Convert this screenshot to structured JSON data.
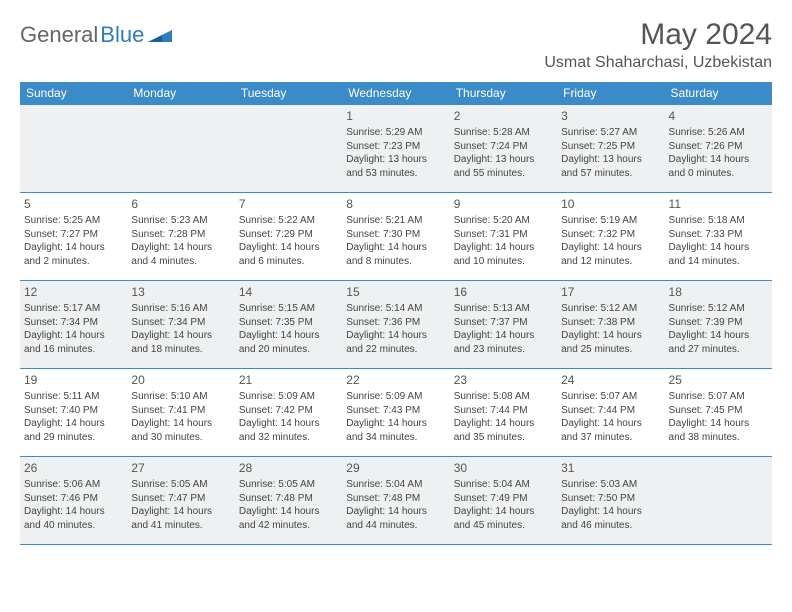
{
  "brand": {
    "part1": "General",
    "part2": "Blue"
  },
  "title": "May 2024",
  "location": "Usmat Shaharchasi, Uzbekistan",
  "colors": {
    "header_bg": "#3b8bc8",
    "header_text": "#ffffff",
    "alt_row_bg": "#eef0f1",
    "border": "#3b8bc8",
    "text": "#444444",
    "title_text": "#555555",
    "logo_gray": "#666666",
    "logo_blue": "#2e7cc0"
  },
  "dow": [
    "Sunday",
    "Monday",
    "Tuesday",
    "Wednesday",
    "Thursday",
    "Friday",
    "Saturday"
  ],
  "weeks": [
    [
      {
        "n": "",
        "sr": "",
        "ss": "",
        "dl": ""
      },
      {
        "n": "",
        "sr": "",
        "ss": "",
        "dl": ""
      },
      {
        "n": "",
        "sr": "",
        "ss": "",
        "dl": ""
      },
      {
        "n": "1",
        "sr": "Sunrise: 5:29 AM",
        "ss": "Sunset: 7:23 PM",
        "dl": "Daylight: 13 hours and 53 minutes."
      },
      {
        "n": "2",
        "sr": "Sunrise: 5:28 AM",
        "ss": "Sunset: 7:24 PM",
        "dl": "Daylight: 13 hours and 55 minutes."
      },
      {
        "n": "3",
        "sr": "Sunrise: 5:27 AM",
        "ss": "Sunset: 7:25 PM",
        "dl": "Daylight: 13 hours and 57 minutes."
      },
      {
        "n": "4",
        "sr": "Sunrise: 5:26 AM",
        "ss": "Sunset: 7:26 PM",
        "dl": "Daylight: 14 hours and 0 minutes."
      }
    ],
    [
      {
        "n": "5",
        "sr": "Sunrise: 5:25 AM",
        "ss": "Sunset: 7:27 PM",
        "dl": "Daylight: 14 hours and 2 minutes."
      },
      {
        "n": "6",
        "sr": "Sunrise: 5:23 AM",
        "ss": "Sunset: 7:28 PM",
        "dl": "Daylight: 14 hours and 4 minutes."
      },
      {
        "n": "7",
        "sr": "Sunrise: 5:22 AM",
        "ss": "Sunset: 7:29 PM",
        "dl": "Daylight: 14 hours and 6 minutes."
      },
      {
        "n": "8",
        "sr": "Sunrise: 5:21 AM",
        "ss": "Sunset: 7:30 PM",
        "dl": "Daylight: 14 hours and 8 minutes."
      },
      {
        "n": "9",
        "sr": "Sunrise: 5:20 AM",
        "ss": "Sunset: 7:31 PM",
        "dl": "Daylight: 14 hours and 10 minutes."
      },
      {
        "n": "10",
        "sr": "Sunrise: 5:19 AM",
        "ss": "Sunset: 7:32 PM",
        "dl": "Daylight: 14 hours and 12 minutes."
      },
      {
        "n": "11",
        "sr": "Sunrise: 5:18 AM",
        "ss": "Sunset: 7:33 PM",
        "dl": "Daylight: 14 hours and 14 minutes."
      }
    ],
    [
      {
        "n": "12",
        "sr": "Sunrise: 5:17 AM",
        "ss": "Sunset: 7:34 PM",
        "dl": "Daylight: 14 hours and 16 minutes."
      },
      {
        "n": "13",
        "sr": "Sunrise: 5:16 AM",
        "ss": "Sunset: 7:34 PM",
        "dl": "Daylight: 14 hours and 18 minutes."
      },
      {
        "n": "14",
        "sr": "Sunrise: 5:15 AM",
        "ss": "Sunset: 7:35 PM",
        "dl": "Daylight: 14 hours and 20 minutes."
      },
      {
        "n": "15",
        "sr": "Sunrise: 5:14 AM",
        "ss": "Sunset: 7:36 PM",
        "dl": "Daylight: 14 hours and 22 minutes."
      },
      {
        "n": "16",
        "sr": "Sunrise: 5:13 AM",
        "ss": "Sunset: 7:37 PM",
        "dl": "Daylight: 14 hours and 23 minutes."
      },
      {
        "n": "17",
        "sr": "Sunrise: 5:12 AM",
        "ss": "Sunset: 7:38 PM",
        "dl": "Daylight: 14 hours and 25 minutes."
      },
      {
        "n": "18",
        "sr": "Sunrise: 5:12 AM",
        "ss": "Sunset: 7:39 PM",
        "dl": "Daylight: 14 hours and 27 minutes."
      }
    ],
    [
      {
        "n": "19",
        "sr": "Sunrise: 5:11 AM",
        "ss": "Sunset: 7:40 PM",
        "dl": "Daylight: 14 hours and 29 minutes."
      },
      {
        "n": "20",
        "sr": "Sunrise: 5:10 AM",
        "ss": "Sunset: 7:41 PM",
        "dl": "Daylight: 14 hours and 30 minutes."
      },
      {
        "n": "21",
        "sr": "Sunrise: 5:09 AM",
        "ss": "Sunset: 7:42 PM",
        "dl": "Daylight: 14 hours and 32 minutes."
      },
      {
        "n": "22",
        "sr": "Sunrise: 5:09 AM",
        "ss": "Sunset: 7:43 PM",
        "dl": "Daylight: 14 hours and 34 minutes."
      },
      {
        "n": "23",
        "sr": "Sunrise: 5:08 AM",
        "ss": "Sunset: 7:44 PM",
        "dl": "Daylight: 14 hours and 35 minutes."
      },
      {
        "n": "24",
        "sr": "Sunrise: 5:07 AM",
        "ss": "Sunset: 7:44 PM",
        "dl": "Daylight: 14 hours and 37 minutes."
      },
      {
        "n": "25",
        "sr": "Sunrise: 5:07 AM",
        "ss": "Sunset: 7:45 PM",
        "dl": "Daylight: 14 hours and 38 minutes."
      }
    ],
    [
      {
        "n": "26",
        "sr": "Sunrise: 5:06 AM",
        "ss": "Sunset: 7:46 PM",
        "dl": "Daylight: 14 hours and 40 minutes."
      },
      {
        "n": "27",
        "sr": "Sunrise: 5:05 AM",
        "ss": "Sunset: 7:47 PM",
        "dl": "Daylight: 14 hours and 41 minutes."
      },
      {
        "n": "28",
        "sr": "Sunrise: 5:05 AM",
        "ss": "Sunset: 7:48 PM",
        "dl": "Daylight: 14 hours and 42 minutes."
      },
      {
        "n": "29",
        "sr": "Sunrise: 5:04 AM",
        "ss": "Sunset: 7:48 PM",
        "dl": "Daylight: 14 hours and 44 minutes."
      },
      {
        "n": "30",
        "sr": "Sunrise: 5:04 AM",
        "ss": "Sunset: 7:49 PM",
        "dl": "Daylight: 14 hours and 45 minutes."
      },
      {
        "n": "31",
        "sr": "Sunrise: 5:03 AM",
        "ss": "Sunset: 7:50 PM",
        "dl": "Daylight: 14 hours and 46 minutes."
      },
      {
        "n": "",
        "sr": "",
        "ss": "",
        "dl": ""
      }
    ]
  ]
}
